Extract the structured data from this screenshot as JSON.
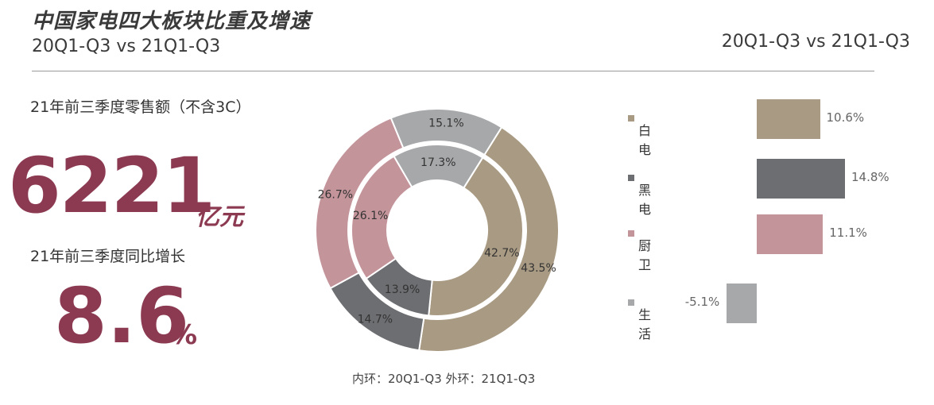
{
  "header": {
    "title": "中国家电四大板块比重及增速",
    "subtitle": "20Q1-Q3 vs 21Q1-Q3",
    "right_subtitle": "20Q1-Q3 vs 21Q1-Q3"
  },
  "kpis": {
    "sales_label": "21年前三季度零售额（不含3C）",
    "sales_value": "6221",
    "sales_unit": "亿元",
    "growth_label": "21年前三季度同比增长",
    "growth_value": "8.6",
    "growth_unit": "%"
  },
  "colors": {
    "白电": "#a99a83",
    "黑电": "#6d6e71",
    "厨卫": "#c4949b",
    "生活": "#a7a8aa",
    "accent": "#8c3a52"
  },
  "chart_data": [
    {
      "type": "pie",
      "subtype": "donut",
      "caption": "内环：20Q1-Q3 外环：21Q1-Q3",
      "categories": [
        "白电",
        "黑电",
        "厨卫",
        "生活"
      ],
      "series": [
        {
          "name": "20Q1-Q3",
          "ring": "inner",
          "values": [
            42.7,
            13.9,
            26.1,
            17.3
          ],
          "labels": [
            "42.7%",
            "13.9%",
            "26.1%",
            "17.3%"
          ]
        },
        {
          "name": "21Q1-Q3",
          "ring": "outer",
          "values": [
            43.5,
            14.7,
            26.7,
            15.1
          ],
          "labels": [
            "43.5%",
            "14.7%",
            "26.7%",
            "15.1%"
          ]
        }
      ]
    },
    {
      "type": "bar",
      "orientation": "horizontal",
      "categories": [
        "白电",
        "黑电",
        "厨卫",
        "生活"
      ],
      "values": [
        10.6,
        14.8,
        11.1,
        -5.1
      ],
      "labels": [
        "10.6%",
        "14.8%",
        "11.1%",
        "-5.1%"
      ],
      "legend": "left"
    }
  ]
}
